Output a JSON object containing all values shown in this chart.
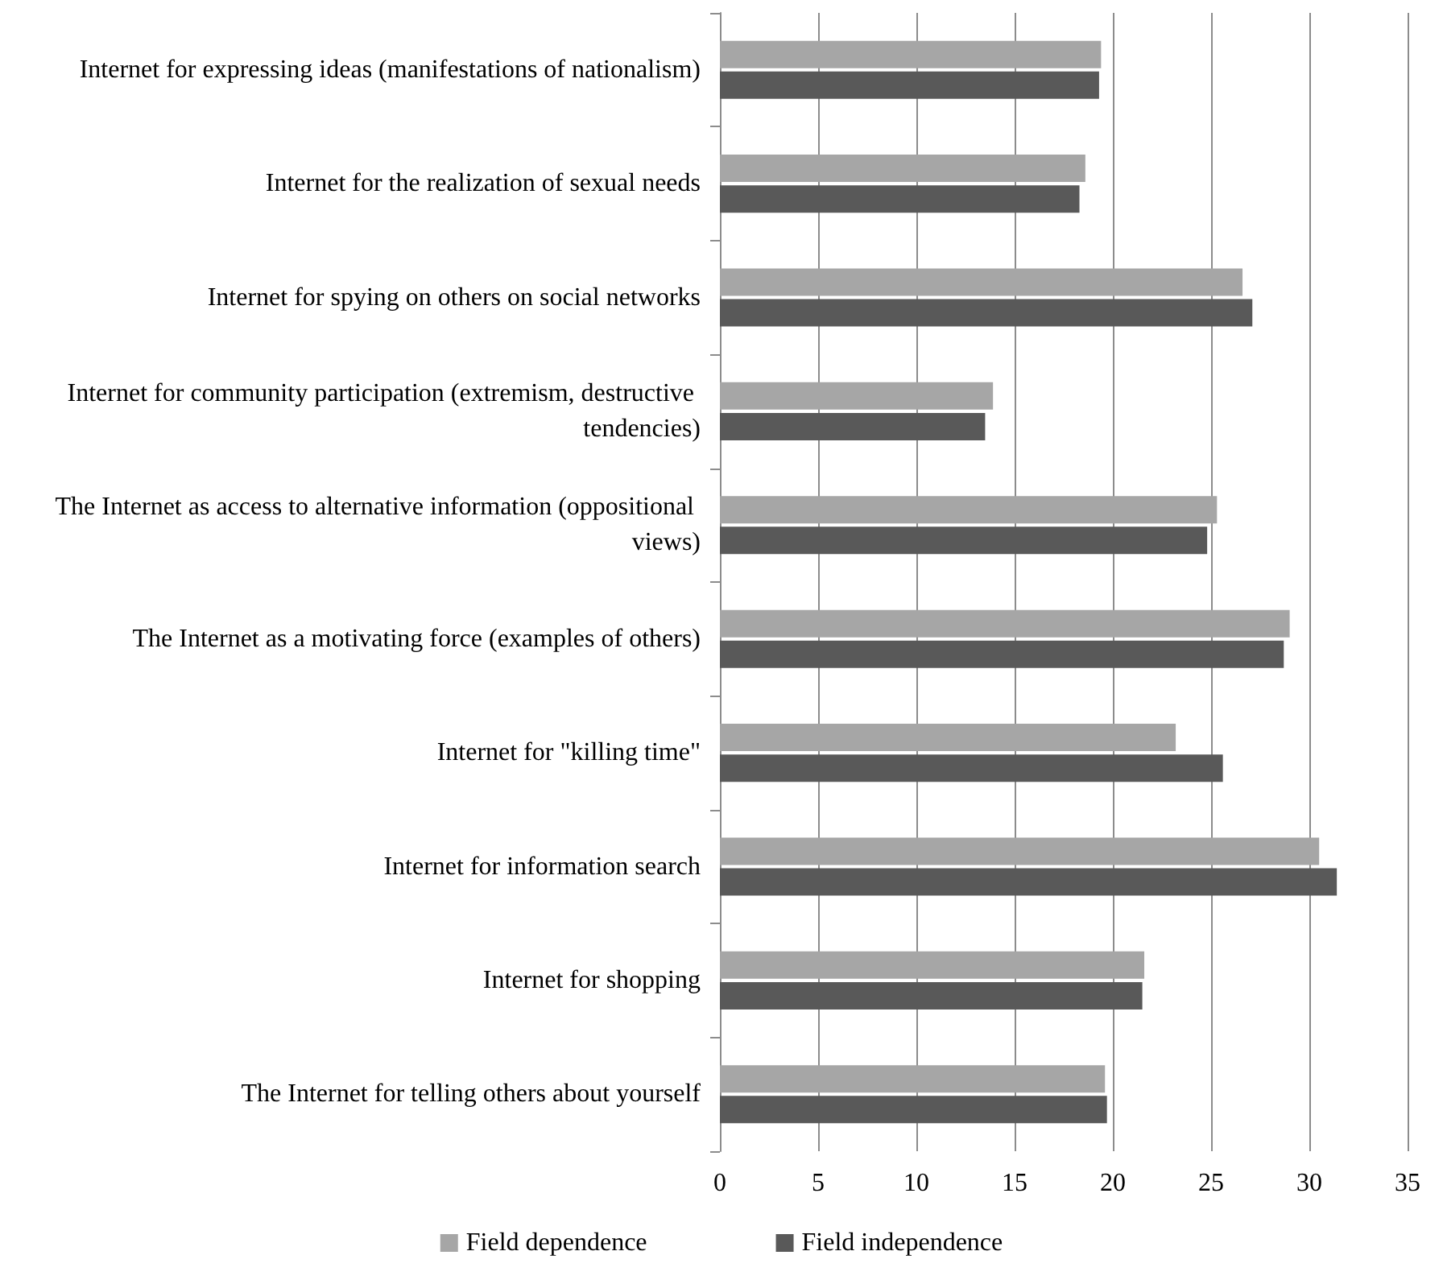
{
  "chart_data": {
    "type": "bar",
    "orientation": "horizontal",
    "categories": [
      "Internet for expressing ideas (manifestations of nationalism)",
      "Internet for the realization of sexual needs",
      "Internet for spying on others on social networks",
      "Internet for community participation (extremism, destructive tendencies)",
      "The Internet as access to alternative information (oppositional views)",
      "The Internet as a motivating force (examples of others)",
      "Internet for \"killing time\"",
      "Internet for information search",
      "Internet for shopping",
      "The Internet for telling others about yourself"
    ],
    "series": [
      {
        "name": "Field dependence",
        "color": "#a6a6a6",
        "values": [
          19.4,
          18.6,
          26.6,
          13.9,
          25.3,
          29.0,
          23.2,
          30.5,
          21.6,
          19.6
        ]
      },
      {
        "name": "Field independence",
        "color": "#595959",
        "values": [
          19.3,
          18.3,
          27.1,
          13.5,
          24.8,
          28.7,
          25.6,
          31.4,
          21.5,
          19.7
        ]
      }
    ],
    "xlim": [
      0,
      35
    ],
    "xticks": [
      0,
      5,
      10,
      15,
      20,
      25,
      30,
      35
    ],
    "grid": "x",
    "legend": "bottom"
  }
}
